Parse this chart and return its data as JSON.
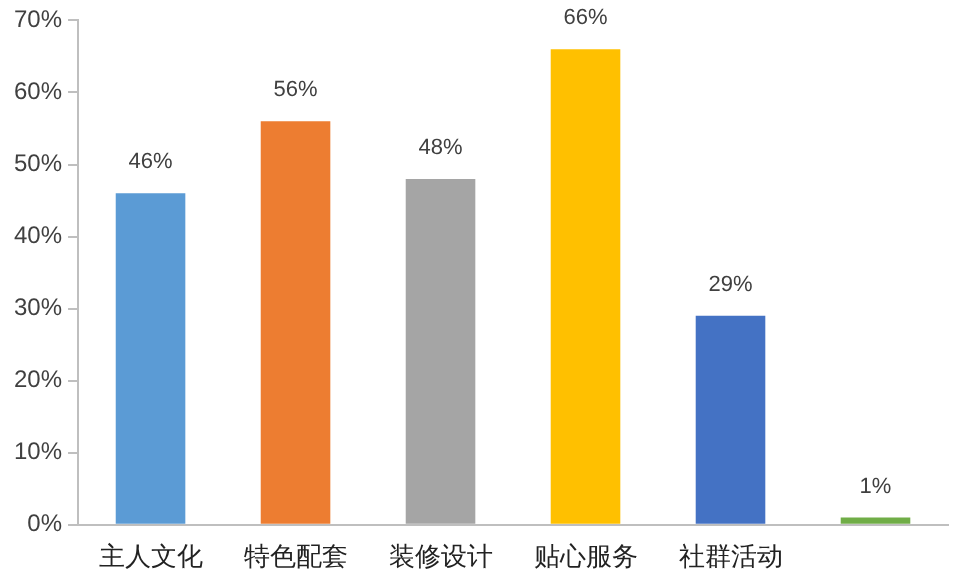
{
  "chart_data": {
    "type": "bar",
    "categories": [
      "主人文化",
      "特色配套",
      "装修设计",
      "贴心服务",
      "社群活动",
      null
    ],
    "values": [
      46,
      56,
      48,
      66,
      29,
      1
    ],
    "colors": [
      "#5b9bd5",
      "#ed7d31",
      "#a5a5a5",
      "#ffc000",
      "#4472c4",
      "#70ad47"
    ],
    "ylim": [
      0,
      70
    ],
    "yticks": [
      {
        "value": 0,
        "label": "0%"
      },
      {
        "value": 10,
        "label": "10%"
      },
      {
        "value": 20,
        "label": "20%"
      },
      {
        "value": 30,
        "label": "30%"
      },
      {
        "value": 40,
        "label": "40%"
      },
      {
        "value": 50,
        "label": "50%"
      },
      {
        "value": 60,
        "label": "60%"
      },
      {
        "value": 70,
        "label": "70%"
      }
    ],
    "value_labels": [
      "46%",
      "56%",
      "48%",
      "66%",
      "29%",
      "1%"
    ],
    "grid": false,
    "legend": false
  }
}
